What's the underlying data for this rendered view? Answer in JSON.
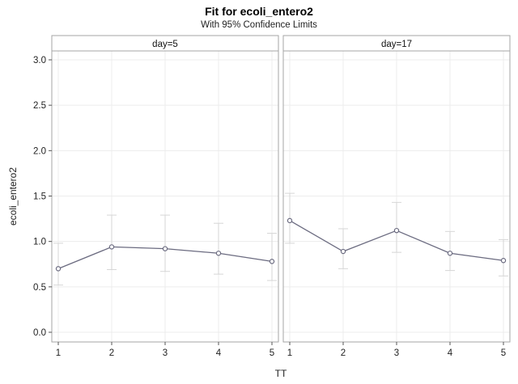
{
  "title": "Fit for ecoli_entero2",
  "subtitle": "With 95% Confidence Limits",
  "chart_data": {
    "type": "line",
    "xlabel": "TT",
    "ylabel": "ecoli_entero2",
    "ylim": [
      0,
      3
    ],
    "yticks": [
      "0.0",
      "0.5",
      "1.0",
      "1.5",
      "2.0",
      "2.5",
      "3.0"
    ],
    "xticks": [
      "1",
      "2",
      "3",
      "4",
      "5"
    ],
    "grid": true,
    "colors": {
      "line": "#6b6b80",
      "marker": "#6b6b80",
      "ci": "#d6d6d6",
      "grid": "#ececec",
      "frame": "#a6a6a6",
      "header_bg": "#ffffff"
    },
    "panels": [
      {
        "label": "day=5",
        "x": [
          1,
          2,
          3,
          4,
          5
        ],
        "y": [
          0.7,
          0.94,
          0.92,
          0.87,
          0.78
        ],
        "lower": [
          0.52,
          0.69,
          0.67,
          0.64,
          0.57
        ],
        "upper": [
          0.98,
          1.29,
          1.29,
          1.2,
          1.09
        ]
      },
      {
        "label": "day=17",
        "x": [
          1,
          2,
          3,
          4,
          5
        ],
        "y": [
          1.23,
          0.89,
          1.12,
          0.87,
          0.79
        ],
        "lower": [
          0.98,
          0.7,
          0.88,
          0.68,
          0.62
        ],
        "upper": [
          1.53,
          1.14,
          1.43,
          1.11,
          1.02
        ]
      }
    ]
  }
}
